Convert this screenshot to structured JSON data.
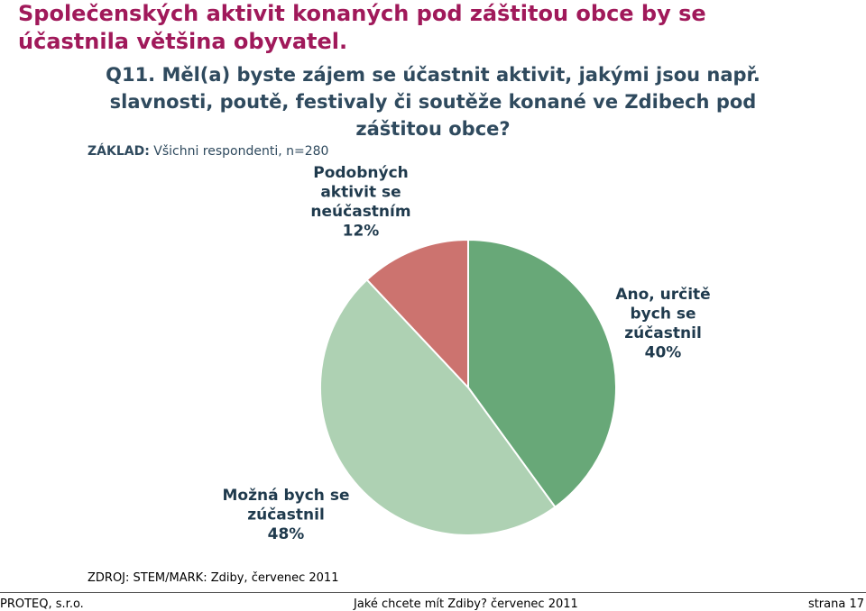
{
  "headline": "Společenských aktivit konaných pod záštitou obce by se účastnila většina obyvatel.",
  "question": "Q11. Měl(a) byste zájem se účastnit aktivit, jakými jsou např. slavnosti, poutě, festivaly či soutěže konané ve Zdibech pod záštitou obce?",
  "base": {
    "prefix": "ZÁKLAD:",
    "text": "Všichni respondenti, n=280"
  },
  "chart_data": {
    "type": "pie",
    "start_angle_deg": 0,
    "direction": "clockwise",
    "slices": [
      {
        "label_lines": [
          "Ano, určitě",
          "bych se",
          "zúčastnil",
          "40%"
        ],
        "value": 40,
        "color": "#68a878"
      },
      {
        "label_lines": [
          "Možná bych se",
          "zúčastnil",
          "48%"
        ],
        "value": 48,
        "color": "#aed1b3"
      },
      {
        "label_lines": [
          "Podobných",
          "aktivit se",
          "neúčastním",
          "12%"
        ],
        "value": 12,
        "color": "#cc736f"
      }
    ]
  },
  "source": "ZDROJ: STEM/MARK: Zdiby, červenec 2011",
  "footer": {
    "left": "PROTEQ, s.r.o.",
    "center": "Jaké chcete mít Zdiby? červenec 2011",
    "right": "strana 17"
  }
}
